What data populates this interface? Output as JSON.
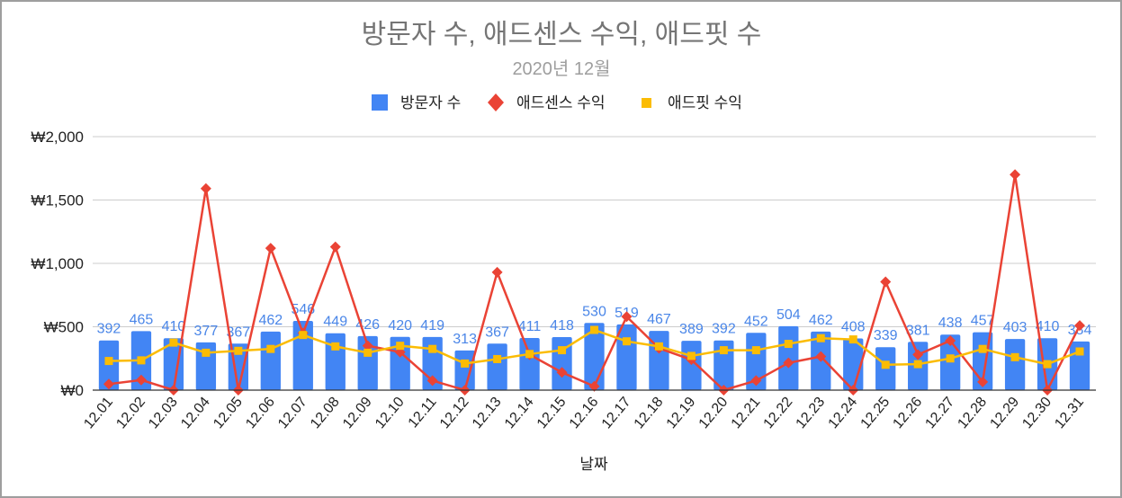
{
  "chart_data": {
    "type": "bar",
    "title": "방문자 수, 애드센스 수익, 애드핏 수",
    "subtitle": "2020년 12월",
    "xlabel": "날짜",
    "ylabel": "",
    "ylim": [
      0,
      2000
    ],
    "yticks": [
      {
        "value": 0,
        "label": "₩0"
      },
      {
        "value": 500,
        "label": "₩500"
      },
      {
        "value": 1000,
        "label": "₩1,000"
      },
      {
        "value": 1500,
        "label": "₩1,500"
      },
      {
        "value": 2000,
        "label": "₩2,000"
      }
    ],
    "grid": true,
    "legend_position": "top",
    "categories": [
      "12.01",
      "12.02",
      "12.03",
      "12.04",
      "12.05",
      "12.06",
      "12.07",
      "12.08",
      "12.09",
      "12.10",
      "12.11",
      "12.12",
      "12.13",
      "12.14",
      "12.15",
      "12.16",
      "12.17",
      "12.18",
      "12.19",
      "12.20",
      "12.21",
      "12.22",
      "12.23",
      "12.24",
      "12.25",
      "12.26",
      "12.27",
      "12.28",
      "12.29",
      "12.30",
      "12.31"
    ],
    "series": [
      {
        "name": "방문자 수",
        "type": "bar",
        "color": "#4285f4",
        "label_color": "#4a86e8",
        "values": [
          392,
          465,
          410,
          377,
          367,
          462,
          546,
          449,
          426,
          420,
          419,
          313,
          367,
          411,
          418,
          530,
          519,
          467,
          389,
          392,
          452,
          504,
          462,
          408,
          339,
          381,
          438,
          457,
          403,
          410,
          384
        ],
        "labels": [
          "392",
          "465",
          "410",
          "377",
          "367",
          "462",
          "546",
          "449",
          "426",
          "420",
          "419",
          "313",
          "367",
          "411",
          "418",
          "530",
          "519",
          "467",
          "389",
          "392",
          "452",
          "504",
          "462",
          "408",
          "339",
          "381",
          "438",
          "457",
          "403",
          "410",
          "384"
        ]
      },
      {
        "name": "애드센스 수익",
        "type": "line",
        "marker": "diamond",
        "color": "#ea4335",
        "values": [
          48,
          80,
          0,
          1590,
          0,
          1120,
          450,
          1130,
          350,
          300,
          75,
          0,
          930,
          280,
          140,
          30,
          580,
          330,
          240,
          0,
          75,
          215,
          265,
          0,
          855,
          280,
          390,
          65,
          1700,
          0,
          510
        ]
      },
      {
        "name": "애드핏 수익",
        "type": "line",
        "marker": "square",
        "color": "#fbbc04",
        "values": [
          230,
          235,
          375,
          295,
          310,
          325,
          435,
          345,
          295,
          350,
          325,
          210,
          245,
          285,
          315,
          475,
          385,
          345,
          270,
          315,
          315,
          365,
          410,
          400,
          200,
          205,
          250,
          325,
          260,
          205,
          305
        ]
      }
    ]
  }
}
